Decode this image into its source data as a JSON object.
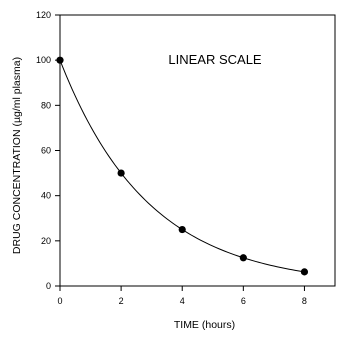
{
  "chart_data": {
    "type": "scatter",
    "title": "",
    "annotation": "LINEAR SCALE",
    "xlabel": "TIME (hours)",
    "ylabel": "DRUG CONCENTRATION (µg/ml plasma)",
    "xlim": [
      0,
      9
    ],
    "ylim": [
      0,
      120
    ],
    "x_ticks": [
      0,
      2,
      4,
      6,
      8
    ],
    "y_ticks": [
      0,
      20,
      40,
      60,
      80,
      100,
      120
    ],
    "grid": false,
    "legend": "none",
    "series": [
      {
        "x": [
          0,
          2,
          4,
          6,
          8
        ],
        "y": [
          100,
          50,
          25,
          12.5,
          6.25
        ],
        "fit_curve": "exponential decay"
      }
    ],
    "colors": {
      "marker": "#000000",
      "line": "#000000",
      "axis": "#000000"
    }
  }
}
